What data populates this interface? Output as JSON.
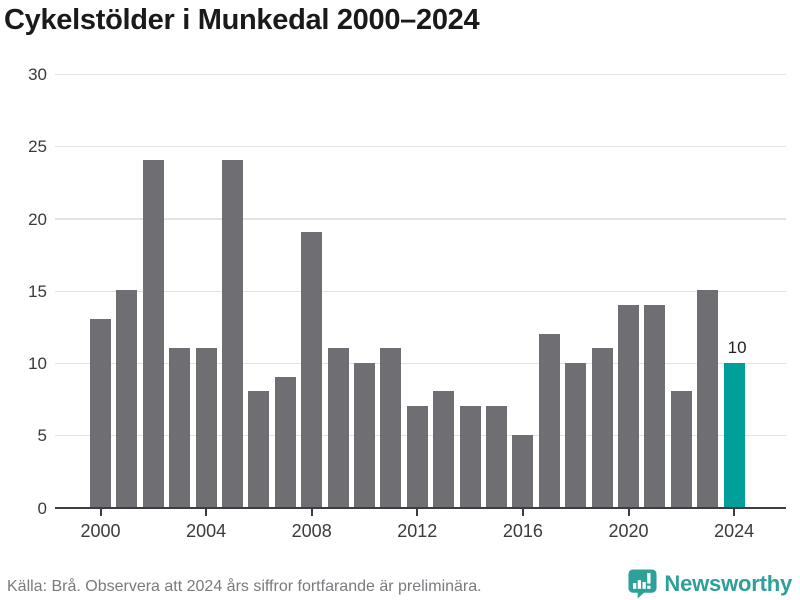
{
  "title": "Cykelstölder i Munkedal 2000–2024",
  "footer": {
    "source": "Källa: Brå. Observera att 2024 års siffror fortfarande är preliminära.",
    "brand": "Newsworthy"
  },
  "colors": {
    "bar": "#6e6e73",
    "highlight": "#00a09a",
    "grid": "#e3e3e3",
    "axis": "#3c3c41",
    "tick_text": "#3a3a3f",
    "title_text": "#1a1a1a",
    "value_label_text": "#222222",
    "footer_text": "#7a7a7f",
    "brand_teal": "#2da099"
  },
  "chart_data": {
    "type": "bar",
    "title": "Cykelstölder i Munkedal 2000–2024",
    "categories": [
      2000,
      2001,
      2002,
      2003,
      2004,
      2005,
      2006,
      2007,
      2008,
      2009,
      2010,
      2011,
      2012,
      2013,
      2014,
      2015,
      2016,
      2017,
      2018,
      2019,
      2020,
      2021,
      2022,
      2023,
      2024
    ],
    "values": [
      13,
      15,
      24,
      11,
      11,
      24,
      8,
      9,
      19,
      11,
      10,
      11,
      7,
      8,
      7,
      7,
      5,
      12,
      10,
      11,
      14,
      14,
      8,
      15,
      10
    ],
    "highlighted_category": 2024,
    "value_labels": [
      {
        "category": 2024,
        "text": "10"
      }
    ],
    "xlabel": "",
    "ylabel": "",
    "ylim": [
      0,
      30
    ],
    "yticks": [
      0,
      5,
      10,
      15,
      20,
      25,
      30
    ],
    "xticks": [
      2000,
      2004,
      2008,
      2012,
      2016,
      2020,
      2024
    ],
    "grid": "horizontal",
    "legend": false
  }
}
